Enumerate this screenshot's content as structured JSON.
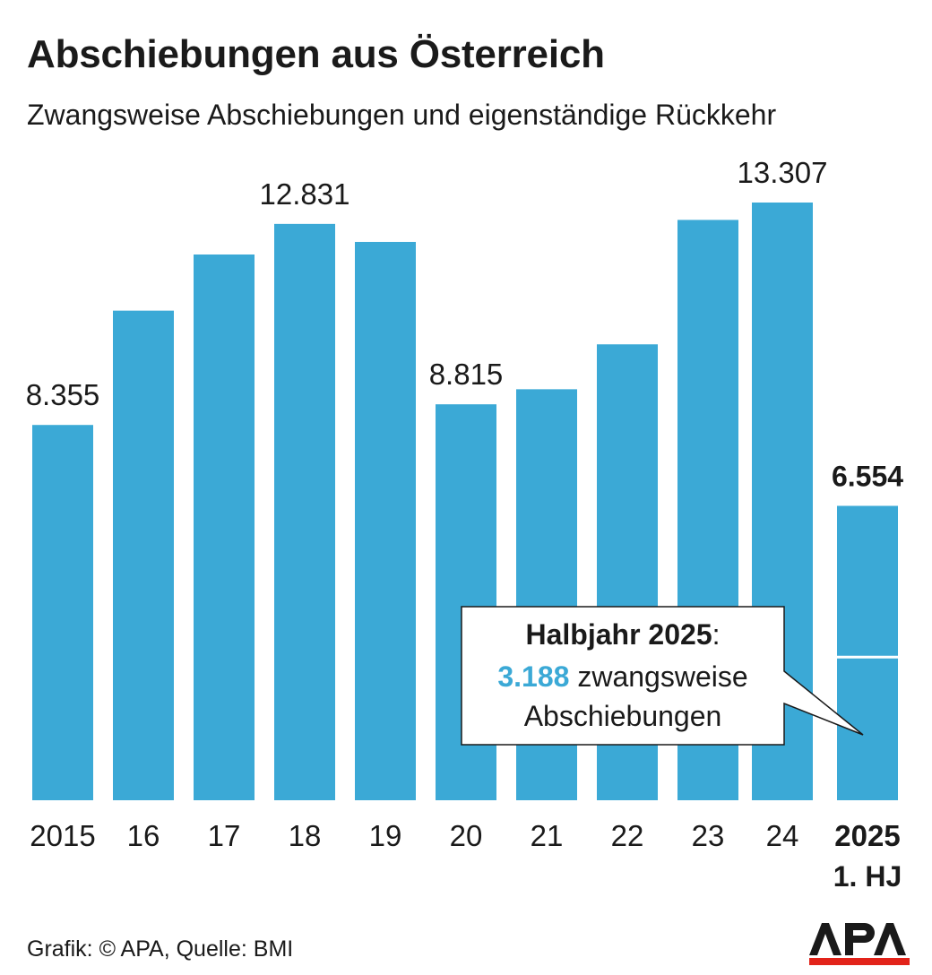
{
  "title": "Abschiebungen aus Österreich",
  "subtitle": "Zwangsweise Abschiebungen und eigenständige Rückkehr",
  "footer": "Grafik: © APA, Quelle: BMI",
  "logo_text": "APA",
  "colors": {
    "bar": "#3BA9D6",
    "text": "#1a1a1a",
    "highlight": "#3BA9D6",
    "logo_red": "#e2231a",
    "divider": "#ffffff"
  },
  "callout": {
    "title": "Halbjahr 2025",
    "colon": ":",
    "value": "3.188",
    "rest": " zwangsweise",
    "line3": "Abschiebungen"
  },
  "chart_data": {
    "type": "bar",
    "categories": [
      "2015",
      "16",
      "17",
      "18",
      "19",
      "20",
      "21",
      "22",
      "23",
      "24",
      "2025"
    ],
    "category_sublabels": [
      "",
      "",
      "",
      "",
      "",
      "",
      "",
      "",
      "",
      "",
      "1. HJ"
    ],
    "values": [
      8355,
      10900,
      12150,
      12831,
      12430,
      8815,
      9150,
      10150,
      12920,
      13307,
      6554
    ],
    "value_labels": [
      "8.355",
      "",
      "",
      "12.831",
      "",
      "8.815",
      "",
      "",
      "",
      "13.307",
      "6.554"
    ],
    "segments": {
      "category": "2025",
      "zwangsweise": 3188
    },
    "bold_categories": [
      "2025"
    ],
    "ylim": [
      0,
      13307
    ],
    "grid": false
  }
}
